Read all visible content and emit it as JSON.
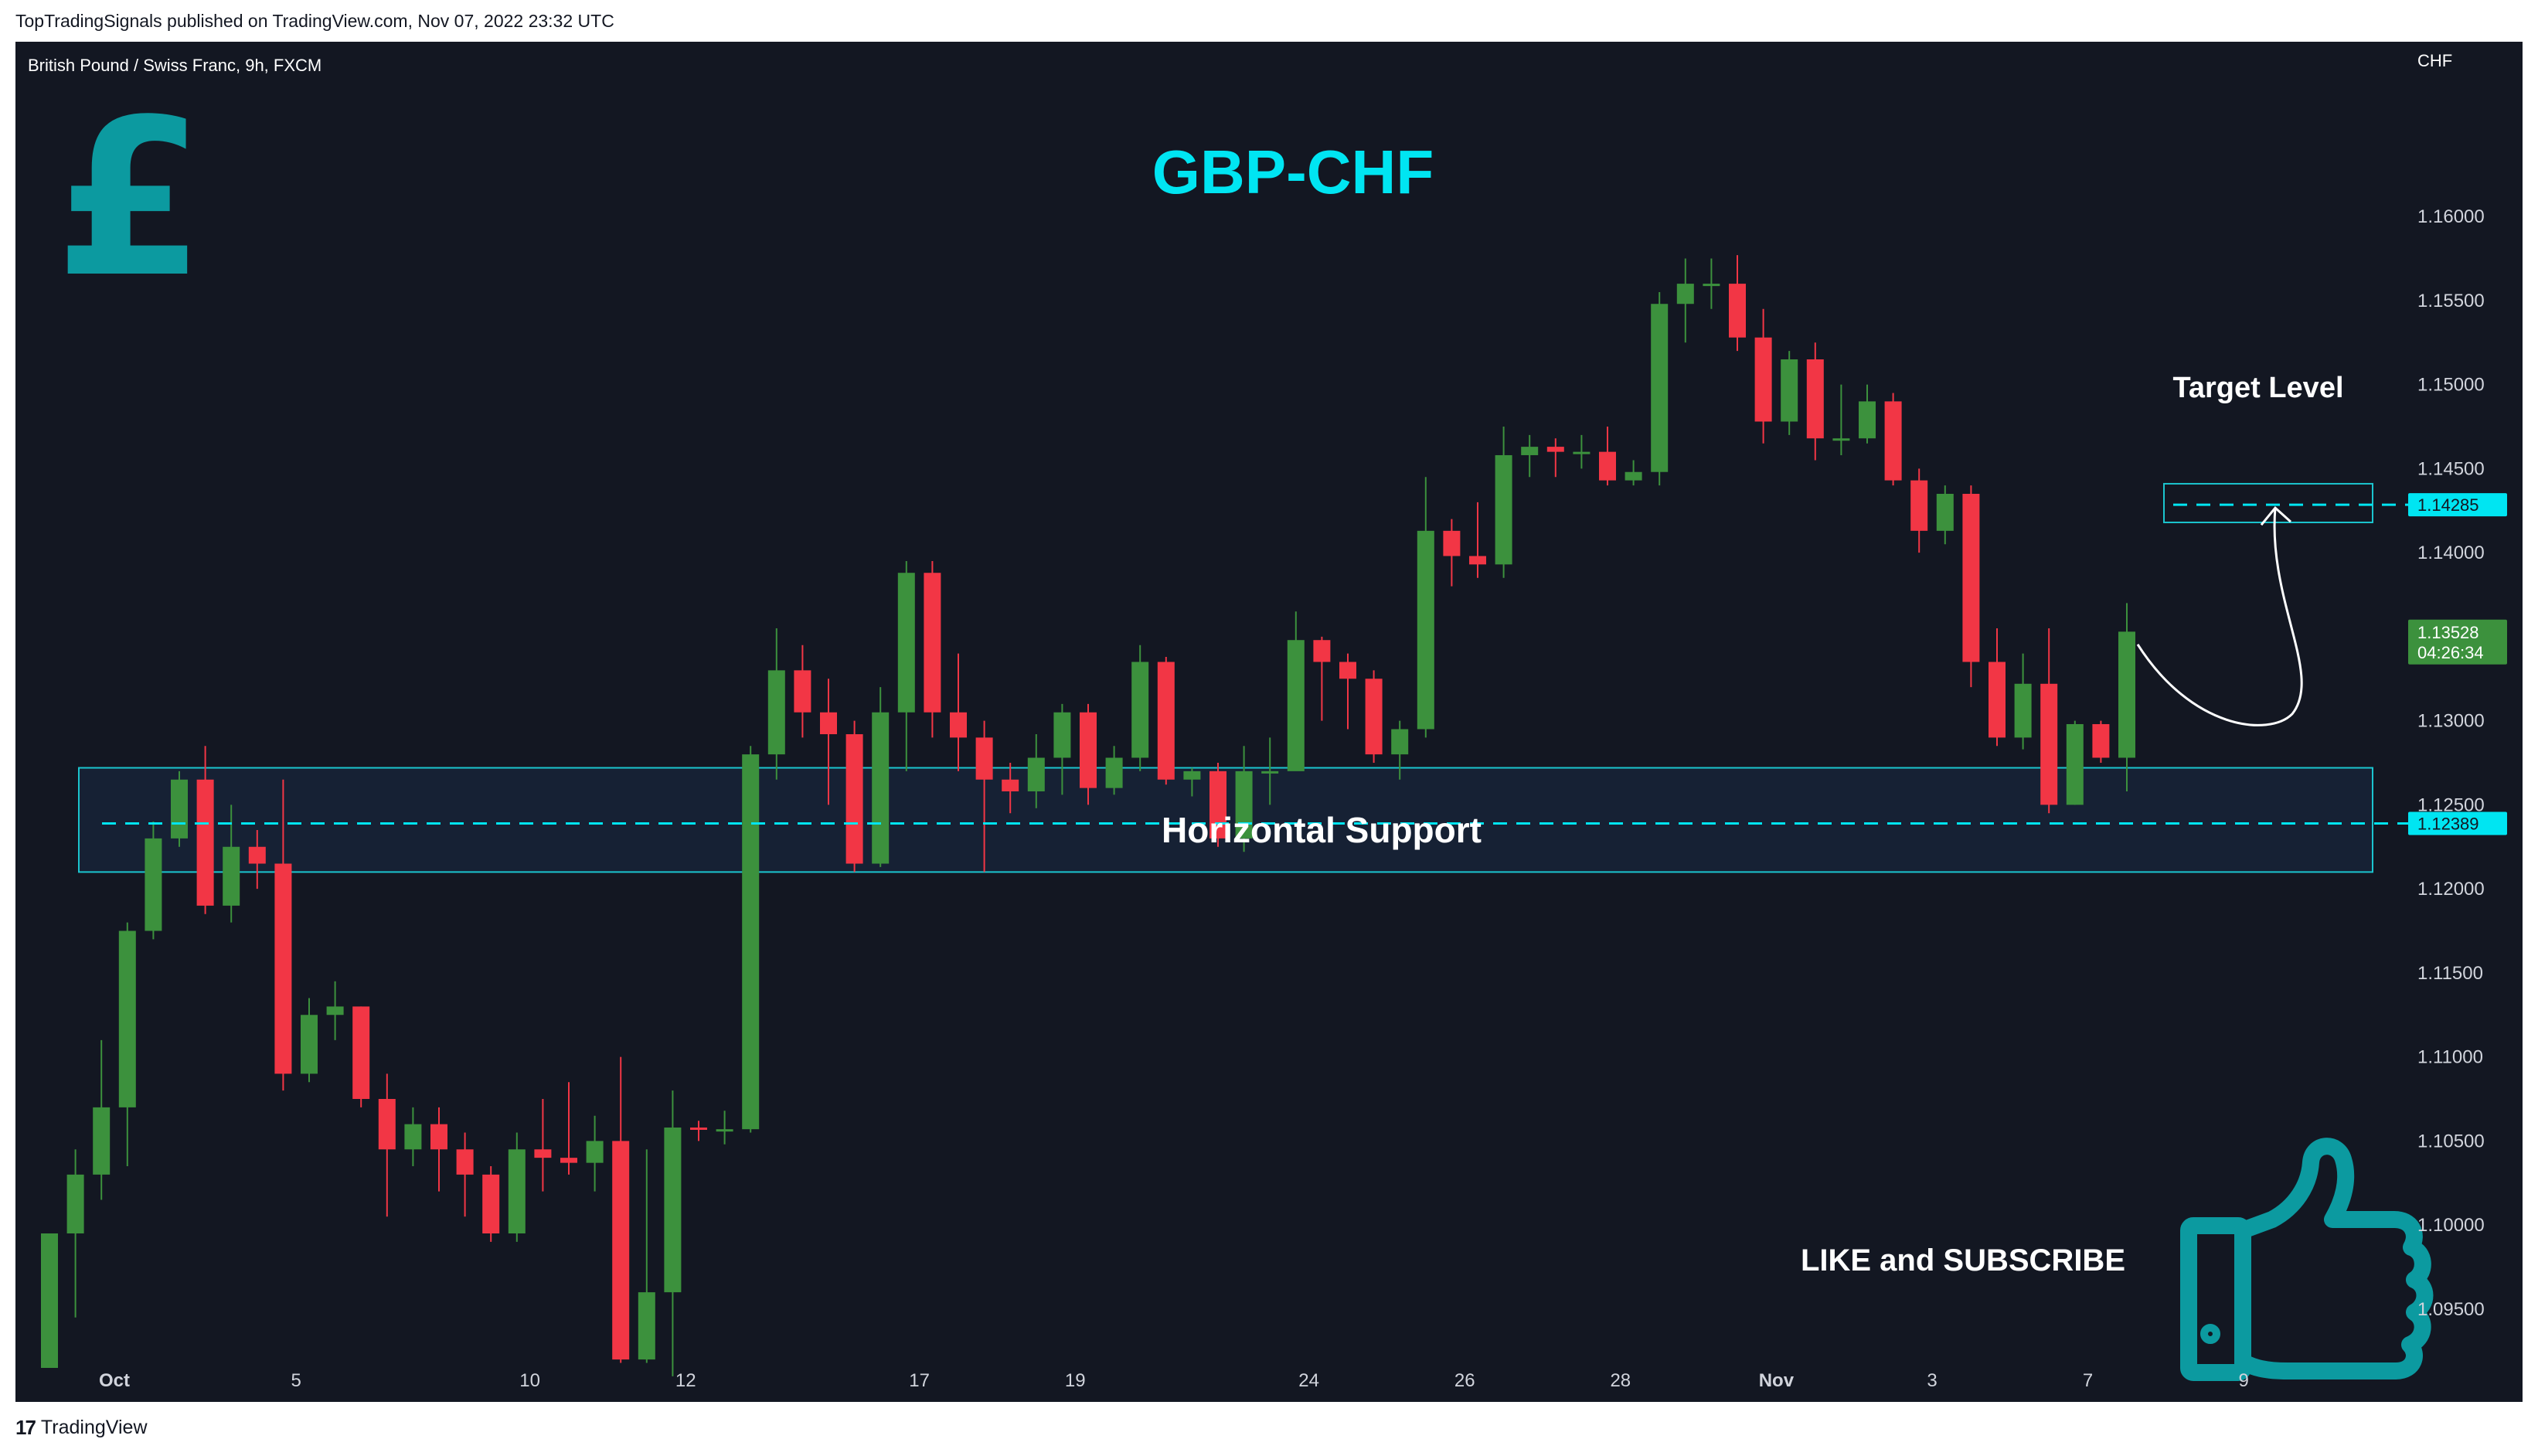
{
  "header": {
    "published_text": "TopTradingSignals published on TradingView.com, Nov 07, 2022 23:32 UTC"
  },
  "chart_header": {
    "symbol_text": "British Pound / Swiss Franc, 9h, FXCM",
    "currency": "CHF"
  },
  "annotations": {
    "title": "GBP-CHF",
    "support_label": "Horizontal Support",
    "target_label": "Target Level",
    "cta": "LIKE and SUBSCRIBE",
    "pound_symbol": "£",
    "icon_names": [
      "pound-icon",
      "thumbs-up-icon"
    ]
  },
  "price_tags": {
    "target": "1.14285",
    "support": "1.12389",
    "last_price": "1.13528",
    "countdown": "04:26:34"
  },
  "footer": {
    "brand": "TradingView",
    "logo_mark": "17"
  },
  "colors": {
    "background": "#131722",
    "up": "#3c913d",
    "down": "#f23645",
    "accent": "#00e5f2",
    "zone_stroke": "#1bc5cf",
    "icon": "#0c9aa0"
  },
  "chart_data": {
    "type": "candlestick",
    "title": "GBP-CHF",
    "symbol": "British Pound / Swiss Franc",
    "interval": "9h",
    "ylabel": "CHF",
    "ylim": [
      1.0915,
      1.1635
    ],
    "yticks": [
      "1.16000",
      "1.15500",
      "1.15000",
      "1.14500",
      "1.14000",
      "1.13500",
      "1.13000",
      "1.12500",
      "1.12000",
      "1.11500",
      "1.11000",
      "1.10500",
      "1.10000",
      "1.09500"
    ],
    "xtick_labels": [
      {
        "label": "Oct",
        "bar": 2.5
      },
      {
        "label": "5",
        "bar": 9.5
      },
      {
        "label": "10",
        "bar": 18.5
      },
      {
        "label": "12",
        "bar": 24.5
      },
      {
        "label": "17",
        "bar": 33.5
      },
      {
        "label": "19",
        "bar": 39.5
      },
      {
        "label": "24",
        "bar": 48.5
      },
      {
        "label": "26",
        "bar": 54.5
      },
      {
        "label": "28",
        "bar": 60.5
      },
      {
        "label": "Nov",
        "bar": 66.5
      },
      {
        "label": "3",
        "bar": 72.5
      },
      {
        "label": "7",
        "bar": 78.5
      },
      {
        "label": "9",
        "bar": 84.5
      }
    ],
    "candles": [
      [
        1.0915,
        1.0995,
        1.0905,
        1.0905
      ],
      [
        1.0995,
        1.103,
        1.1045,
        1.0945
      ],
      [
        1.103,
        1.107,
        1.111,
        1.1015
      ],
      [
        1.107,
        1.1175,
        1.118,
        1.1035
      ],
      [
        1.1175,
        1.123,
        1.124,
        1.117
      ],
      [
        1.123,
        1.1265,
        1.127,
        1.1225
      ],
      [
        1.1265,
        1.119,
        1.1285,
        1.1185
      ],
      [
        1.119,
        1.1225,
        1.125,
        1.118
      ],
      [
        1.1225,
        1.1215,
        1.1235,
        1.12
      ],
      [
        1.1215,
        1.109,
        1.1265,
        1.108
      ],
      [
        1.109,
        1.1125,
        1.1135,
        1.1085
      ],
      [
        1.1125,
        1.113,
        1.1145,
        1.111
      ],
      [
        1.113,
        1.1075,
        1.113,
        1.107
      ],
      [
        1.1075,
        1.1045,
        1.109,
        1.1005
      ],
      [
        1.1045,
        1.106,
        1.107,
        1.1035
      ],
      [
        1.106,
        1.1045,
        1.107,
        1.102
      ],
      [
        1.1045,
        1.103,
        1.1055,
        1.1005
      ],
      [
        1.103,
        1.0995,
        1.1035,
        1.099
      ],
      [
        1.0995,
        1.1045,
        1.1055,
        1.099
      ],
      [
        1.1045,
        1.104,
        1.1075,
        1.102
      ],
      [
        1.104,
        1.1037,
        1.1085,
        1.103
      ],
      [
        1.1037,
        1.105,
        1.1065,
        1.102
      ],
      [
        1.105,
        1.092,
        1.11,
        1.0918
      ],
      [
        1.092,
        1.096,
        1.1045,
        1.0918
      ],
      [
        1.096,
        1.1058,
        1.108,
        1.091
      ],
      [
        1.1058,
        1.1057,
        1.1062,
        1.105
      ],
      [
        1.1057,
        1.1057,
        1.1068,
        1.1048
      ],
      [
        1.1057,
        1.128,
        1.1285,
        1.1055
      ],
      [
        1.128,
        1.133,
        1.1355,
        1.1265
      ],
      [
        1.133,
        1.1305,
        1.1345,
        1.129
      ],
      [
        1.1305,
        1.1292,
        1.1325,
        1.125
      ],
      [
        1.1292,
        1.1215,
        1.13,
        1.121
      ],
      [
        1.1215,
        1.1305,
        1.132,
        1.1213
      ],
      [
        1.1305,
        1.1388,
        1.1395,
        1.127
      ],
      [
        1.1388,
        1.1305,
        1.1395,
        1.129
      ],
      [
        1.1305,
        1.129,
        1.134,
        1.127
      ],
      [
        1.129,
        1.1265,
        1.13,
        1.121
      ],
      [
        1.1265,
        1.1258,
        1.1275,
        1.1245
      ],
      [
        1.1258,
        1.1278,
        1.1292,
        1.1248
      ],
      [
        1.1278,
        1.1305,
        1.131,
        1.1256
      ],
      [
        1.1305,
        1.126,
        1.131,
        1.125
      ],
      [
        1.126,
        1.1278,
        1.1285,
        1.1256
      ],
      [
        1.1278,
        1.1335,
        1.1345,
        1.127
      ],
      [
        1.1335,
        1.1265,
        1.1338,
        1.1262
      ],
      [
        1.1265,
        1.127,
        1.1272,
        1.1255
      ],
      [
        1.127,
        1.123,
        1.1275,
        1.1225
      ],
      [
        1.123,
        1.127,
        1.1285,
        1.1222
      ],
      [
        1.127,
        1.127,
        1.129,
        1.125
      ],
      [
        1.127,
        1.1348,
        1.1365,
        1.131
      ],
      [
        1.1348,
        1.1335,
        1.135,
        1.13
      ],
      [
        1.1335,
        1.1325,
        1.134,
        1.1295
      ],
      [
        1.1325,
        1.128,
        1.133,
        1.1275
      ],
      [
        1.128,
        1.1295,
        1.13,
        1.1265
      ],
      [
        1.1295,
        1.1413,
        1.1445,
        1.129
      ],
      [
        1.1413,
        1.1398,
        1.142,
        1.138
      ],
      [
        1.1398,
        1.1393,
        1.143,
        1.1385
      ],
      [
        1.1393,
        1.1458,
        1.1475,
        1.1385
      ],
      [
        1.1458,
        1.1463,
        1.147,
        1.1445
      ],
      [
        1.1463,
        1.146,
        1.1468,
        1.1445
      ],
      [
        1.146,
        1.146,
        1.147,
        1.145
      ],
      [
        1.146,
        1.1443,
        1.1475,
        1.144
      ],
      [
        1.1443,
        1.1448,
        1.1455,
        1.144
      ],
      [
        1.1448,
        1.1548,
        1.1555,
        1.144
      ],
      [
        1.1548,
        1.156,
        1.1575,
        1.1525
      ],
      [
        1.156,
        1.156,
        1.1575,
        1.1545
      ],
      [
        1.156,
        1.1528,
        1.1577,
        1.152
      ],
      [
        1.1528,
        1.1478,
        1.1545,
        1.1465
      ],
      [
        1.1478,
        1.1515,
        1.152,
        1.147
      ],
      [
        1.1515,
        1.1468,
        1.1525,
        1.1455
      ],
      [
        1.1468,
        1.1468,
        1.15,
        1.1458
      ],
      [
        1.1468,
        1.149,
        1.15,
        1.1465
      ],
      [
        1.149,
        1.1443,
        1.1495,
        1.144
      ],
      [
        1.1443,
        1.1413,
        1.145,
        1.14
      ],
      [
        1.1413,
        1.1435,
        1.144,
        1.1405
      ],
      [
        1.1435,
        1.1335,
        1.144,
        1.132
      ],
      [
        1.1335,
        1.129,
        1.1355,
        1.1285
      ],
      [
        1.129,
        1.1322,
        1.134,
        1.1283
      ],
      [
        1.1322,
        1.125,
        1.1355,
        1.1245
      ],
      [
        1.125,
        1.1298,
        1.13,
        1.125
      ],
      [
        1.1298,
        1.1278,
        1.13,
        1.1275
      ],
      [
        1.1278,
        1.1353,
        1.137,
        1.1258
      ]
    ],
    "horizontal_levels": [
      {
        "label": "Horizontal Support",
        "price": 1.12389,
        "zone": [
          1.121,
          1.1272
        ]
      },
      {
        "label": "Target Level",
        "price": 1.14285,
        "zone": [
          1.1418,
          1.1441
        ]
      }
    ],
    "last_price": 1.13528,
    "grid": false
  }
}
